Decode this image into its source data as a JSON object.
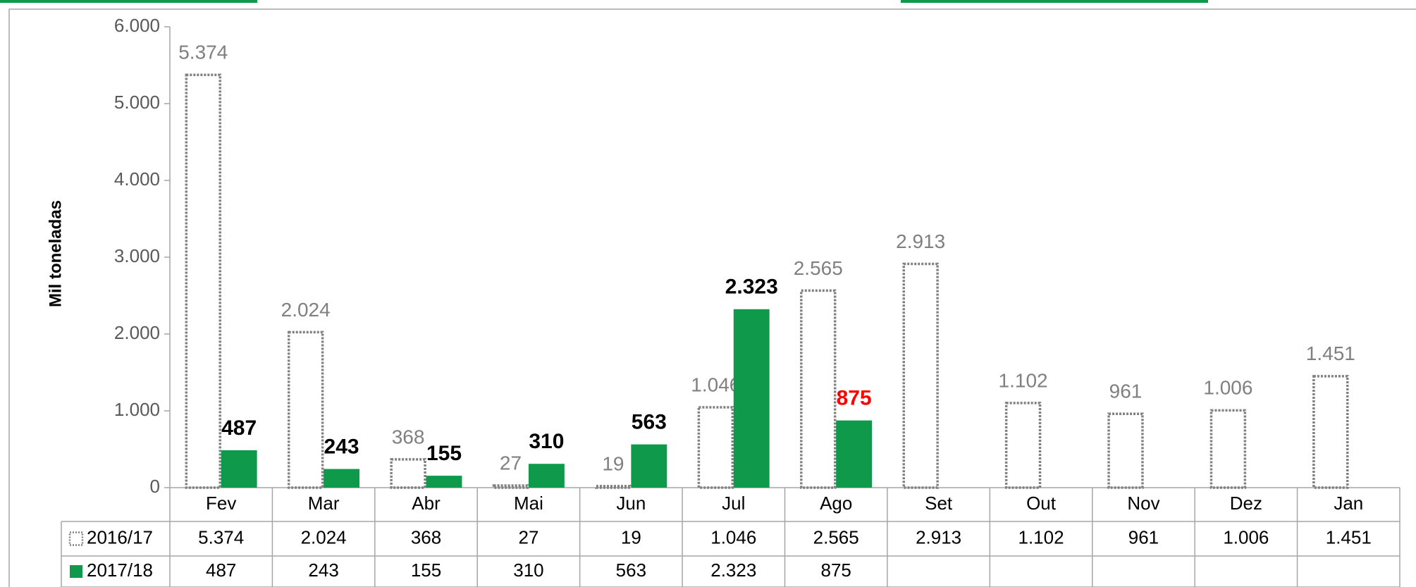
{
  "chart_data": {
    "type": "bar",
    "y_label": "Mil toneladas",
    "categories": [
      "Fev",
      "Mar",
      "Abr",
      "Mai",
      "Jun",
      "Jul",
      "Ago",
      "Set",
      "Out",
      "Nov",
      "Dez",
      "Jan"
    ],
    "series": [
      {
        "name": "2016/17",
        "color": "#808080",
        "style": "dotted",
        "values": [
          5374,
          2024,
          368,
          27,
          19,
          1046,
          2565,
          2913,
          1102,
          961,
          1006,
          1451
        ],
        "value_labels": [
          "5.374",
          "2.024",
          "368",
          "27",
          "19",
          "1.046",
          "2.565",
          "2.913",
          "1.102",
          "961",
          "1.006",
          "1.451"
        ]
      },
      {
        "name": "2017/18",
        "color": "#0e9a4a",
        "style": "solid",
        "values": [
          487,
          243,
          155,
          310,
          563,
          2323,
          875,
          null,
          null,
          null,
          null,
          null
        ],
        "value_labels": [
          "487",
          "243",
          "155",
          "310",
          "563",
          "2.323",
          "875",
          null,
          null,
          null,
          null,
          null
        ],
        "highlight": {
          "index": 6,
          "color": "#ff0000"
        }
      }
    ],
    "ylim": [
      0,
      6000
    ],
    "yticks": [
      0,
      {
        "value": 1000,
        "label": "1.000"
      },
      {
        "value": 2000,
        "label": "2.000"
      },
      {
        "value": 3000,
        "label": "3.000"
      },
      {
        "value": 4000,
        "label": "4.000"
      },
      {
        "value": 5000,
        "label": "5.000"
      },
      {
        "value": 6000,
        "label": "6.000"
      }
    ],
    "data_table": true
  }
}
